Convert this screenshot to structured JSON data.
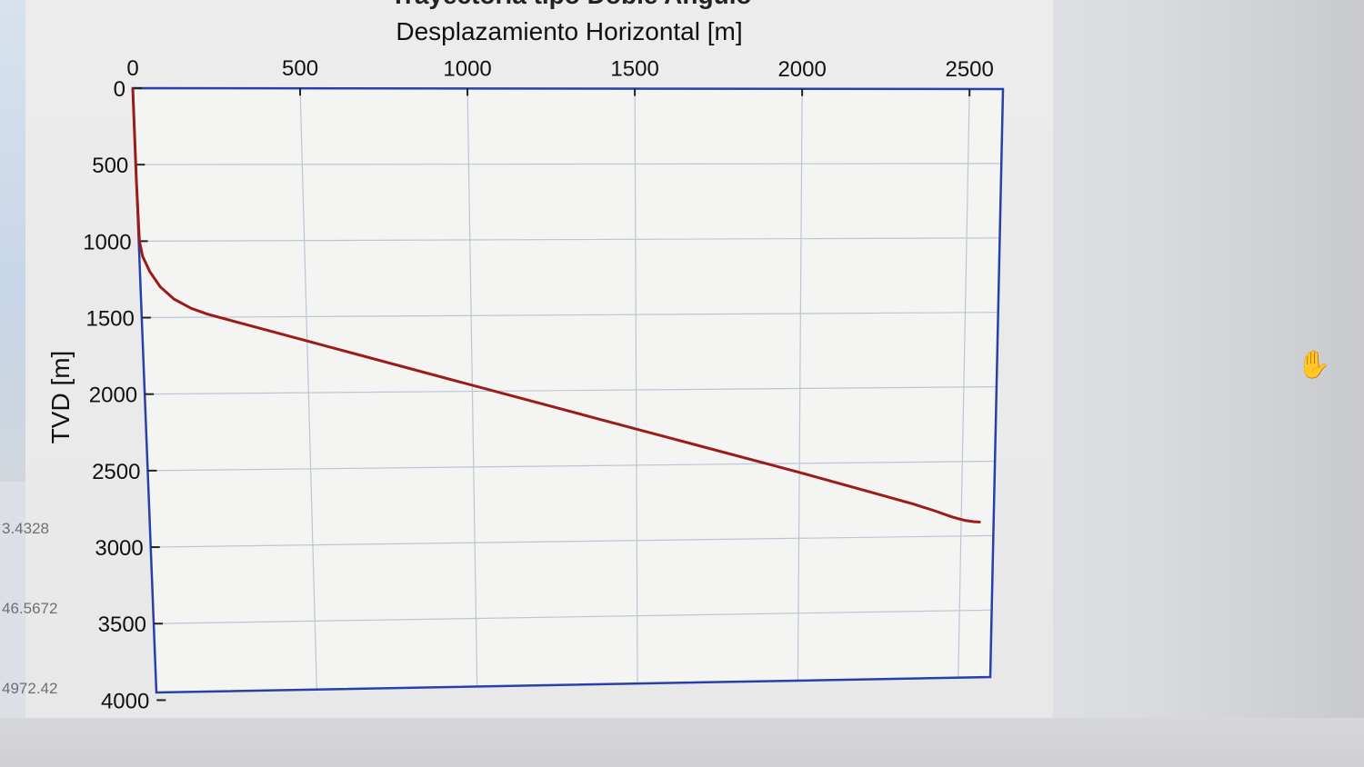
{
  "side_panel": {
    "values": [
      "3.4328",
      "46.5672",
      "4972.42"
    ]
  },
  "icons": {
    "cursor": "hand-cursor-icon"
  },
  "colors": {
    "line": "#9b1b1b",
    "axes": "#2a3fa8",
    "grid": "#b9c6d6",
    "plot_bg": "#f4f5f2"
  },
  "chart_data": {
    "type": "line",
    "title": "Trayectoria tipo Doble Angulo",
    "xlabel": "Desplazamiento Horizontal [m]",
    "ylabel": "TVD [m]",
    "xlim": [
      0,
      2600
    ],
    "ylim": [
      0,
      3950
    ],
    "y_reversed": true,
    "x_axis_location": "top",
    "grid": true,
    "x_ticks": [
      0,
      500,
      1000,
      1500,
      2000,
      2500
    ],
    "x_tick_labels": [
      "0",
      "500",
      "1000",
      "1500",
      "2000",
      "2500"
    ],
    "y_ticks": [
      0,
      500,
      1000,
      1500,
      2000,
      2500,
      3000,
      3500,
      4000
    ],
    "y_tick_labels": [
      "0",
      "500",
      "1000",
      "1500",
      "2000",
      "2500",
      "3000",
      "3500",
      "4000"
    ],
    "series": [
      {
        "x": [
          0,
          0,
          2,
          10,
          30,
          60,
          100,
          150,
          200,
          300,
          500,
          800,
          1100,
          1400,
          1700,
          2000,
          2200,
          2350,
          2420,
          2470,
          2510,
          2540,
          2560
        ],
        "y": [
          0,
          600,
          1000,
          1100,
          1200,
          1300,
          1380,
          1440,
          1480,
          1540,
          1660,
          1840,
          2020,
          2200,
          2380,
          2560,
          2685,
          2780,
          2830,
          2870,
          2895,
          2905,
          2908
        ]
      }
    ]
  }
}
